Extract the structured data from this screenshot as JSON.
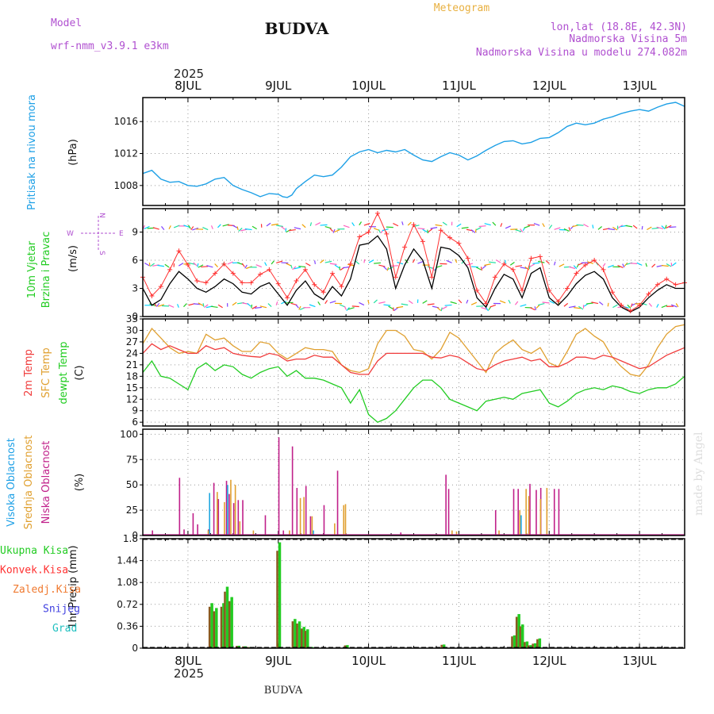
{
  "header": {
    "model_label": "Model",
    "model_name": "wrf-nmm_v3.9.1  e3km",
    "title": "BUDVA",
    "meteogram_label": "Meteogram",
    "lonlat": "lon,lat (18.8E, 42.3N)",
    "elevation": "Nadmorska Visina 5m",
    "model_elevation": "Nadmorska Visina u modelu 274.082m",
    "year": "2025",
    "footer_title": "BUDVA",
    "watermark": "made by Angel"
  },
  "colors": {
    "pressure": "#1ea0e6",
    "wind_speed": "#000000",
    "wind_gust": "#ff3030",
    "temp_2m": "#f03c3c",
    "temp_sfc": "#e0a030",
    "dewpoint": "#22cc22",
    "cloud_high": "#20a8e0",
    "cloud_mid": "#e0a030",
    "cloud_low": "#c0208a",
    "precip_total": "#22cc22",
    "precip_conv": "#ff3030",
    "header_purple": "#b050d0",
    "meteogram_orange": "#e8b040"
  },
  "chart_data": [
    {
      "id": "pressure",
      "type": "line",
      "title": "Pritisak na nivou mora",
      "ylabel": "(hPa)",
      "ylim": [
        1005.5,
        1019
      ],
      "yticks": [
        1008,
        1012,
        1016
      ],
      "x_days": [
        "8JUL",
        "9JUL",
        "10JUL",
        "11JUL",
        "12JUL",
        "13JUL"
      ],
      "x": [
        7.5,
        7.6,
        7.7,
        7.8,
        7.9,
        8.0,
        8.1,
        8.2,
        8.3,
        8.4,
        8.5,
        8.6,
        8.7,
        8.8,
        8.9,
        9.0,
        9.05,
        9.1,
        9.15,
        9.2,
        9.3,
        9.4,
        9.5,
        9.6,
        9.7,
        9.8,
        9.9,
        10.0,
        10.1,
        10.2,
        10.3,
        10.4,
        10.5,
        10.6,
        10.7,
        10.8,
        10.9,
        11.0,
        11.1,
        11.2,
        11.3,
        11.4,
        11.5,
        11.6,
        11.7,
        11.8,
        11.9,
        12.0,
        12.1,
        12.2,
        12.3,
        12.4,
        12.5,
        12.6,
        12.7,
        12.8,
        12.9,
        13.0,
        13.1,
        13.2,
        13.3,
        13.4,
        13.5
      ],
      "values": [
        1009.5,
        1009.9,
        1008.8,
        1008.4,
        1008.5,
        1008.0,
        1007.9,
        1008.2,
        1008.8,
        1009.0,
        1008.0,
        1007.5,
        1007.1,
        1006.6,
        1007.0,
        1006.9,
        1006.6,
        1006.5,
        1006.8,
        1007.6,
        1008.5,
        1009.3,
        1009.1,
        1009.3,
        1010.3,
        1011.6,
        1012.2,
        1012.5,
        1012.1,
        1012.4,
        1012.2,
        1012.5,
        1011.8,
        1011.2,
        1011.0,
        1011.6,
        1012.1,
        1011.8,
        1011.2,
        1011.7,
        1012.4,
        1013.0,
        1013.5,
        1013.6,
        1013.2,
        1013.4,
        1013.9,
        1014.0,
        1014.6,
        1015.4,
        1015.8,
        1015.6,
        1015.8,
        1016.3,
        1016.6,
        1017.0,
        1017.3,
        1017.5,
        1017.3,
        1017.8,
        1018.2,
        1018.4,
        1017.9
      ]
    },
    {
      "id": "wind",
      "type": "line",
      "title": "10m Vjetar Brzina i Pravac",
      "ylabel": "(m/s)",
      "ylim": [
        0,
        11.5
      ],
      "yticks": [
        0,
        3,
        6,
        9
      ],
      "compass": {
        "w": "W",
        "e": "E",
        "n": "N",
        "s": "S"
      },
      "x": [
        7.5,
        7.6,
        7.7,
        7.8,
        7.9,
        8.0,
        8.1,
        8.2,
        8.3,
        8.4,
        8.5,
        8.6,
        8.7,
        8.8,
        8.9,
        9.0,
        9.1,
        9.2,
        9.3,
        9.4,
        9.5,
        9.6,
        9.7,
        9.8,
        9.9,
        10.0,
        10.1,
        10.2,
        10.3,
        10.4,
        10.5,
        10.6,
        10.7,
        10.8,
        10.9,
        11.0,
        11.1,
        11.2,
        11.3,
        11.4,
        11.5,
        11.6,
        11.7,
        11.8,
        11.9,
        12.0,
        12.1,
        12.2,
        12.3,
        12.4,
        12.5,
        12.6,
        12.7,
        12.8,
        12.9,
        13.0,
        13.1,
        13.2,
        13.3,
        13.4,
        13.5
      ],
      "speed": [
        3.0,
        1.2,
        1.8,
        3.5,
        4.8,
        4.0,
        3.0,
        2.6,
        3.2,
        4.0,
        3.5,
        2.6,
        2.4,
        3.2,
        3.6,
        2.4,
        1.2,
        2.8,
        3.8,
        2.4,
        1.8,
        3.2,
        2.2,
        4.0,
        7.6,
        7.8,
        8.6,
        7.2,
        3.0,
        5.5,
        7.2,
        6.0,
        3.0,
        7.4,
        7.2,
        6.5,
        5.2,
        2.0,
        1.0,
        3.0,
        4.5,
        4.0,
        2.0,
        4.6,
        5.2,
        2.0,
        1.2,
        2.2,
        3.5,
        4.4,
        4.8,
        4.0,
        2.0,
        1.0,
        0.5,
        1.0,
        2.0,
        2.8,
        3.4,
        3.0,
        3.0
      ],
      "gust": [
        4.2,
        2.2,
        3.2,
        5.0,
        7.0,
        5.5,
        3.8,
        3.6,
        4.6,
        5.6,
        4.6,
        3.6,
        3.6,
        4.5,
        5.0,
        3.5,
        2.0,
        3.8,
        5.0,
        3.4,
        2.6,
        4.6,
        3.2,
        5.6,
        8.5,
        9.0,
        11.0,
        8.8,
        4.2,
        7.4,
        9.8,
        8.0,
        4.2,
        9.2,
        8.4,
        7.8,
        6.2,
        2.8,
        1.4,
        4.2,
        5.6,
        5.0,
        2.8,
        6.2,
        6.4,
        2.8,
        1.6,
        3.0,
        4.6,
        5.5,
        6.0,
        5.0,
        2.6,
        1.2,
        0.6,
        1.2,
        2.4,
        3.4,
        4.0,
        3.4,
        3.6
      ]
    },
    {
      "id": "temperature",
      "type": "line",
      "title": "2m Temp",
      "title2": "SFC Temp",
      "title3": "dewpt Temp",
      "ylabel": "(C)",
      "ylim": [
        5,
        33
      ],
      "yticks": [
        6,
        9,
        12,
        15,
        18,
        21,
        24,
        27,
        30,
        33
      ],
      "x": [
        7.5,
        7.6,
        7.7,
        7.8,
        7.9,
        8.0,
        8.1,
        8.2,
        8.3,
        8.4,
        8.5,
        8.6,
        8.7,
        8.8,
        8.9,
        9.0,
        9.1,
        9.2,
        9.3,
        9.4,
        9.5,
        9.6,
        9.7,
        9.8,
        9.9,
        10.0,
        10.1,
        10.2,
        10.3,
        10.4,
        10.5,
        10.6,
        10.7,
        10.8,
        10.9,
        11.0,
        11.1,
        11.2,
        11.3,
        11.4,
        11.5,
        11.6,
        11.7,
        11.8,
        11.9,
        12.0,
        12.1,
        12.2,
        12.3,
        12.4,
        12.5,
        12.6,
        12.7,
        12.8,
        12.9,
        13.0,
        13.1,
        13.2,
        13.3,
        13.4,
        13.5
      ],
      "t2m": [
        24,
        26.5,
        25,
        26,
        25,
        24,
        24,
        26,
        25,
        25.5,
        24,
        23.5,
        23.2,
        23,
        24,
        23.5,
        22,
        22.5,
        22.5,
        23.5,
        23,
        23,
        21,
        19,
        18.5,
        18.5,
        22,
        24,
        24,
        24,
        24,
        24,
        23,
        22.8,
        23.5,
        23,
        21.5,
        20,
        19.5,
        21,
        22,
        22.5,
        23,
        22,
        22.5,
        20.5,
        20.5,
        21.5,
        23,
        23,
        22.5,
        23.5,
        23,
        22,
        21,
        20,
        20.5,
        22,
        23.5,
        24.5,
        25.5
      ],
      "tsfc": [
        26.5,
        30.5,
        28,
        25.5,
        24,
        24.5,
        24,
        29,
        27.5,
        28,
        26,
        24.5,
        24.5,
        27,
        26.5,
        24,
        22.5,
        24,
        25.5,
        25,
        25,
        24.5,
        21,
        19.5,
        19,
        20,
        26.5,
        30,
        30,
        28.5,
        25,
        24.5,
        22.5,
        25,
        29.5,
        28,
        25,
        22,
        19,
        24,
        26,
        27.5,
        25,
        24,
        25.5,
        21.5,
        20.5,
        24.5,
        29,
        30.5,
        28.5,
        27,
        23,
        20.5,
        18.5,
        18,
        21,
        25.5,
        29,
        31,
        31.5
      ],
      "dewpt": [
        19,
        22,
        18,
        17.5,
        16,
        14.5,
        20,
        21.5,
        19.5,
        21,
        20.5,
        18.5,
        17.5,
        19,
        20,
        20.5,
        18,
        19.5,
        17.5,
        17.5,
        17,
        16,
        15,
        11,
        14.5,
        8,
        6,
        7,
        9,
        12,
        15,
        17,
        17,
        15,
        12,
        11,
        10,
        9,
        11.5,
        12,
        12.5,
        12,
        13.5,
        14,
        14.5,
        11,
        10,
        11.5,
        13.5,
        14.5,
        15,
        14.5,
        15.5,
        15,
        14,
        13.5,
        14.5,
        15,
        15,
        16,
        18
      ]
    },
    {
      "id": "clouds",
      "type": "bar",
      "title": "Visoka Oblacnost",
      "title2": "Srednja Oblacnost",
      "title3": "Niska Oblacnost",
      "ylabel": "(%)",
      "ylim": [
        0,
        105
      ],
      "yticks": [
        0,
        25,
        50,
        75,
        100
      ],
      "low_x": [
        7.6,
        7.9,
        7.95,
        8.05,
        8.1,
        8.22,
        8.28,
        8.33,
        8.42,
        8.45,
        8.5,
        8.55,
        8.6,
        8.85,
        9.0,
        9.05,
        9.15,
        9.2,
        9.3,
        9.35,
        9.5,
        9.65,
        10.35,
        10.85,
        10.88,
        11.4,
        11.6,
        11.65,
        11.78,
        11.85,
        11.9,
        12.05,
        12.1
      ],
      "low_v": [
        5,
        57,
        6,
        22,
        11,
        6,
        52,
        36,
        54,
        41,
        32,
        35,
        35,
        20,
        97,
        5,
        88,
        47,
        49,
        19,
        30,
        64,
        3,
        60,
        46,
        25,
        46,
        46,
        51,
        45,
        47,
        46,
        46
      ],
      "mid_x": [
        8.2,
        8.3,
        8.38,
        8.45,
        8.5,
        8.55,
        8.7,
        9.1,
        9.22,
        9.26,
        9.35,
        9.6,
        9.7,
        9.72,
        10.9,
        10.95,
        11.42,
        11.65,
        11.72,
        11.75,
        11.88,
        11.95
      ],
      "mid_v": [
        5,
        43,
        33,
        55,
        50,
        14,
        5,
        5,
        37,
        38,
        19,
        12,
        30,
        31,
        5,
        4,
        5,
        25,
        46,
        39,
        36,
        47
      ],
      "high_x": [
        8.25,
        8.45,
        9.4,
        11.7
      ],
      "high_v": [
        42,
        50,
        5,
        20
      ]
    },
    {
      "id": "precip",
      "type": "bar",
      "title": "1hr Precip",
      "ylabel": "(mm)",
      "ylim": [
        0,
        1.8
      ],
      "yticks": [
        0,
        0.36,
        0.72,
        1.08,
        1.44,
        1.8
      ],
      "legend": [
        "Ukupna  Kisa",
        "Konvek.Kisa",
        "Zaledj.Kisa",
        "Snijeg",
        "Grad"
      ],
      "total_x": [
        8.25,
        8.3,
        8.38,
        8.42,
        8.47,
        8.55,
        8.62,
        8.68,
        9.0,
        9.17,
        9.22,
        9.27,
        9.31,
        9.36,
        9.75,
        10.82,
        11.6,
        11.65,
        11.69,
        11.74,
        11.78,
        11.83,
        11.88
      ],
      "total_v": [
        0.74,
        0.66,
        0.74,
        1.01,
        0.84,
        0.04,
        0.03,
        0.02,
        1.74,
        0.48,
        0.44,
        0.35,
        0.31,
        0.02,
        0.05,
        0.06,
        0.21,
        0.56,
        0.39,
        0.11,
        0.05,
        0.08,
        0.16
      ]
    }
  ]
}
